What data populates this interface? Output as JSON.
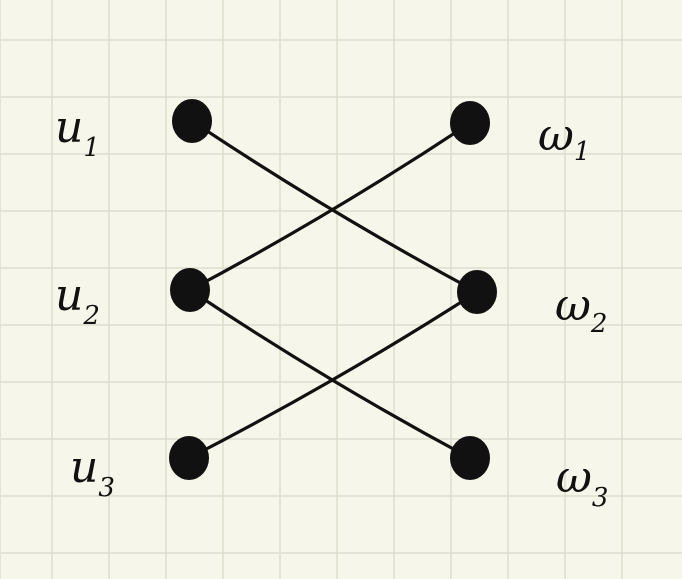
{
  "graph": {
    "left_nodes": [
      {
        "id": "u1",
        "base": "u",
        "sub": "1"
      },
      {
        "id": "u2",
        "base": "u",
        "sub": "2"
      },
      {
        "id": "u3",
        "base": "u",
        "sub": "3"
      }
    ],
    "right_nodes": [
      {
        "id": "w1",
        "base": "ω",
        "sub": "1"
      },
      {
        "id": "w2",
        "base": "ω",
        "sub": "2"
      },
      {
        "id": "w3",
        "base": "ω",
        "sub": "3"
      }
    ],
    "edges": [
      {
        "from": "u1",
        "to": "w2"
      },
      {
        "from": "u2",
        "to": "w1"
      },
      {
        "from": "u2",
        "to": "w3"
      },
      {
        "from": "u3",
        "to": "w2"
      }
    ]
  },
  "colors": {
    "paper": "#f6f6ea",
    "grid": "#d9dac9",
    "ink": "#111111"
  }
}
